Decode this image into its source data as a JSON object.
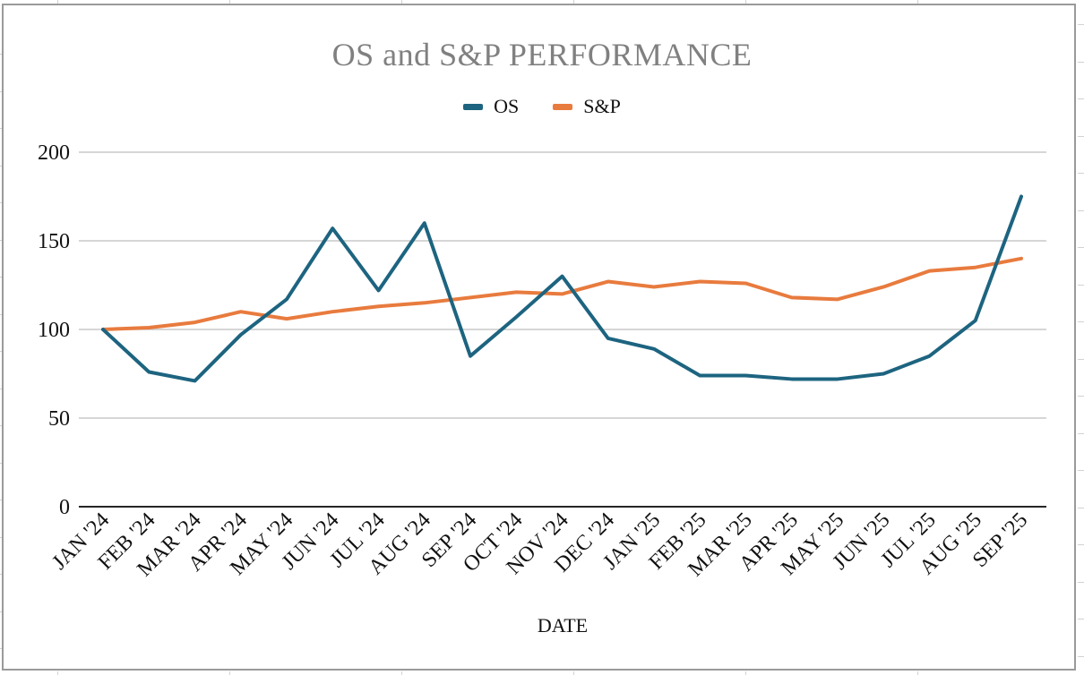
{
  "title": "OS and S&P PERFORMANCE",
  "title_color": "#808080",
  "legend": [
    {
      "label": "OS",
      "color": "#1d6480"
    },
    {
      "label": "S&P",
      "color": "#e87b3e"
    }
  ],
  "x_axis_title": "DATE",
  "chart_data": {
    "type": "line",
    "title": "OS and S&P PERFORMANCE",
    "xlabel": "DATE",
    "ylabel": "",
    "categories": [
      "JAN '24",
      "FEB '24",
      "MAR '24",
      "APR '24",
      "MAY '24",
      "JUN '24",
      "JUL '24",
      "AUG '24",
      "SEP '24",
      "OCT '24",
      "NOV '24",
      "DEC '24",
      "JAN '25",
      "FEB '25",
      "MAR '25",
      "APR '25",
      "MAY '25",
      "JUN '25",
      "JUL '25",
      "AUG '25",
      "SEP '25"
    ],
    "series": [
      {
        "name": "S&P",
        "color": "#e87b3e",
        "values": [
          100,
          101,
          104,
          110,
          106,
          110,
          113,
          115,
          118,
          121,
          120,
          127,
          124,
          127,
          126,
          118,
          117,
          124,
          133,
          135,
          140
        ]
      },
      {
        "name": "OS",
        "color": "#1d6480",
        "values": [
          100,
          76,
          71,
          97,
          117,
          157,
          122,
          160,
          85,
          107,
          130,
          95,
          89,
          74,
          74,
          72,
          72,
          75,
          85,
          105,
          175
        ]
      }
    ],
    "ylim": [
      0,
      200
    ],
    "yticks": [
      0,
      50,
      100,
      150,
      200
    ],
    "grid": true,
    "legend_position": "top",
    "colors": {
      "gridline": "#c9c9c9",
      "axis": "#262626"
    }
  }
}
